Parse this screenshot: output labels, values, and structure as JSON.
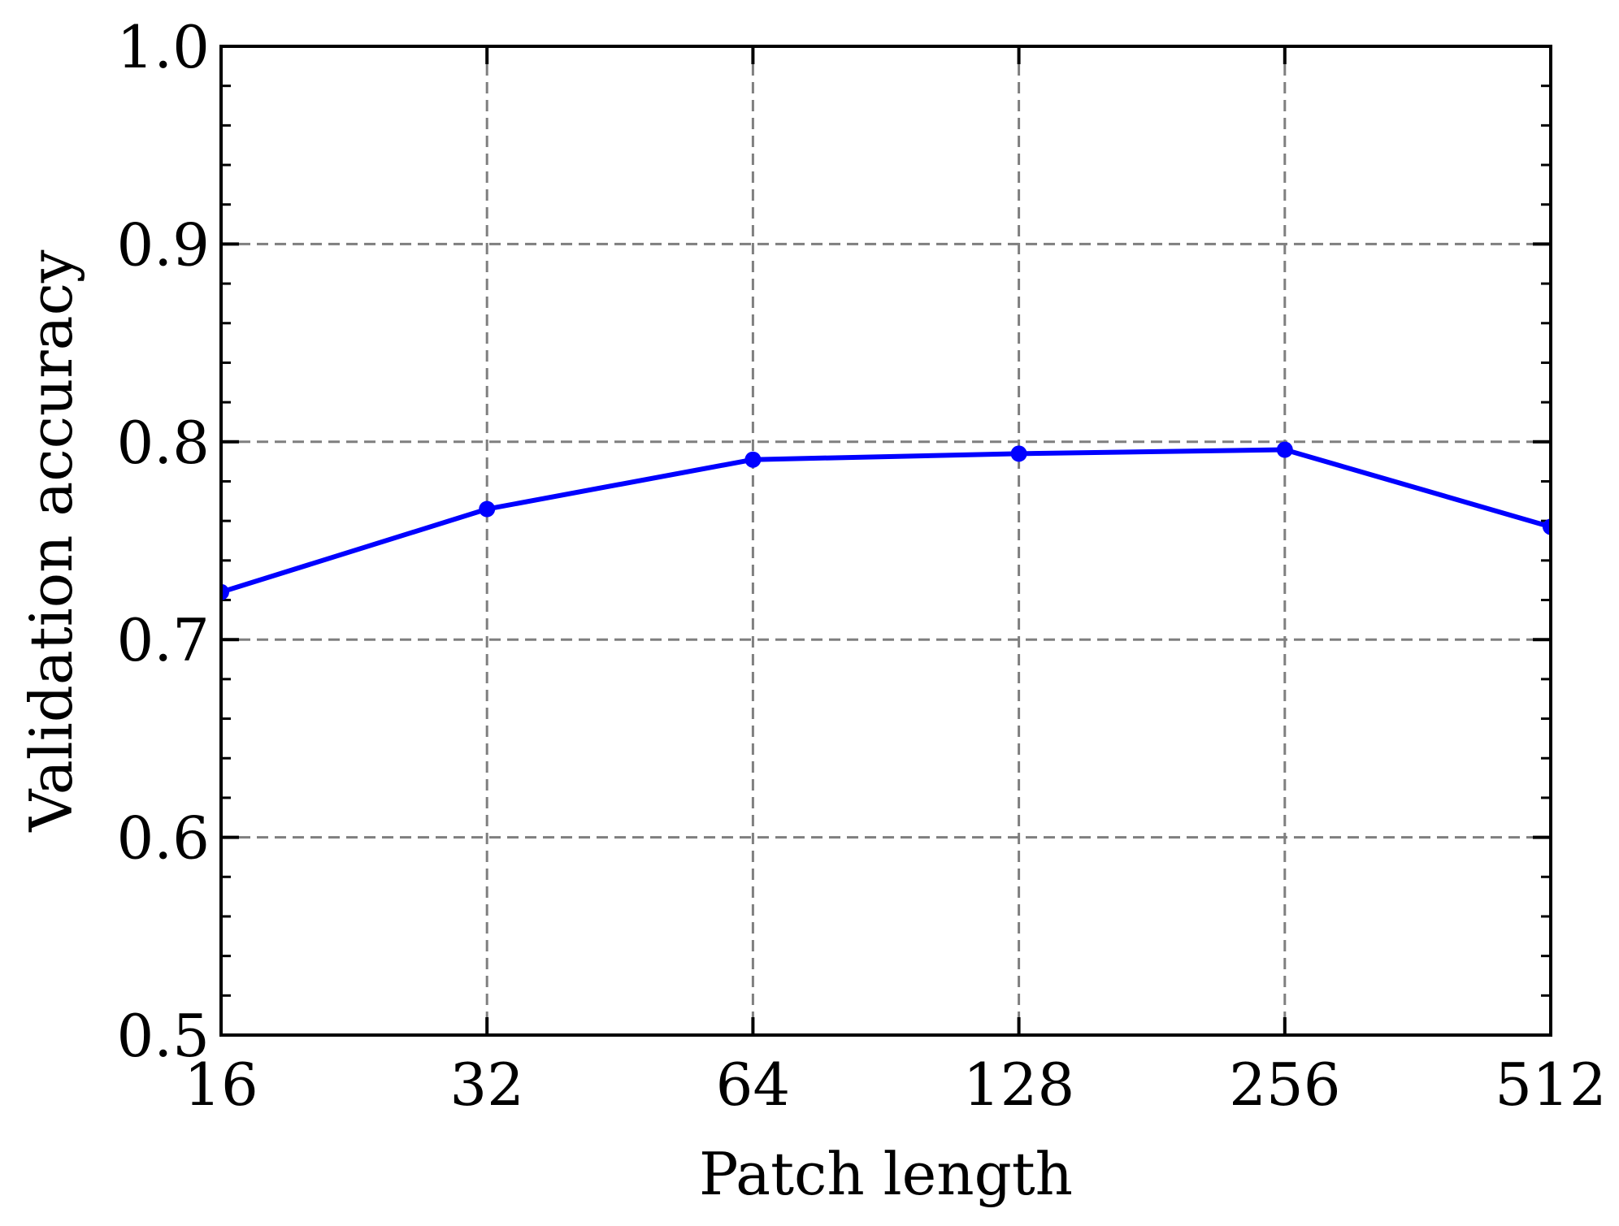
{
  "chart_data": {
    "type": "line",
    "title": "",
    "xlabel": "Patch length",
    "ylabel": "Validation accuracy",
    "x_scale": "log2",
    "x": [
      16,
      32,
      64,
      128,
      256,
      512
    ],
    "x_tick_labels": [
      "16",
      "32",
      "64",
      "128",
      "256",
      "512"
    ],
    "y_ticks": [
      0.5,
      0.6,
      0.7,
      0.8,
      0.9,
      1.0
    ],
    "y_tick_labels": [
      "0.5",
      "0.6",
      "0.7",
      "0.8",
      "0.9",
      "1.0"
    ],
    "xlim": [
      16,
      512
    ],
    "ylim": [
      0.5,
      1.0
    ],
    "grid": true,
    "series": [
      {
        "color": "#0000ff",
        "marker": "circle",
        "values": [
          0.724,
          0.766,
          0.791,
          0.794,
          0.796,
          0.757
        ]
      }
    ]
  }
}
